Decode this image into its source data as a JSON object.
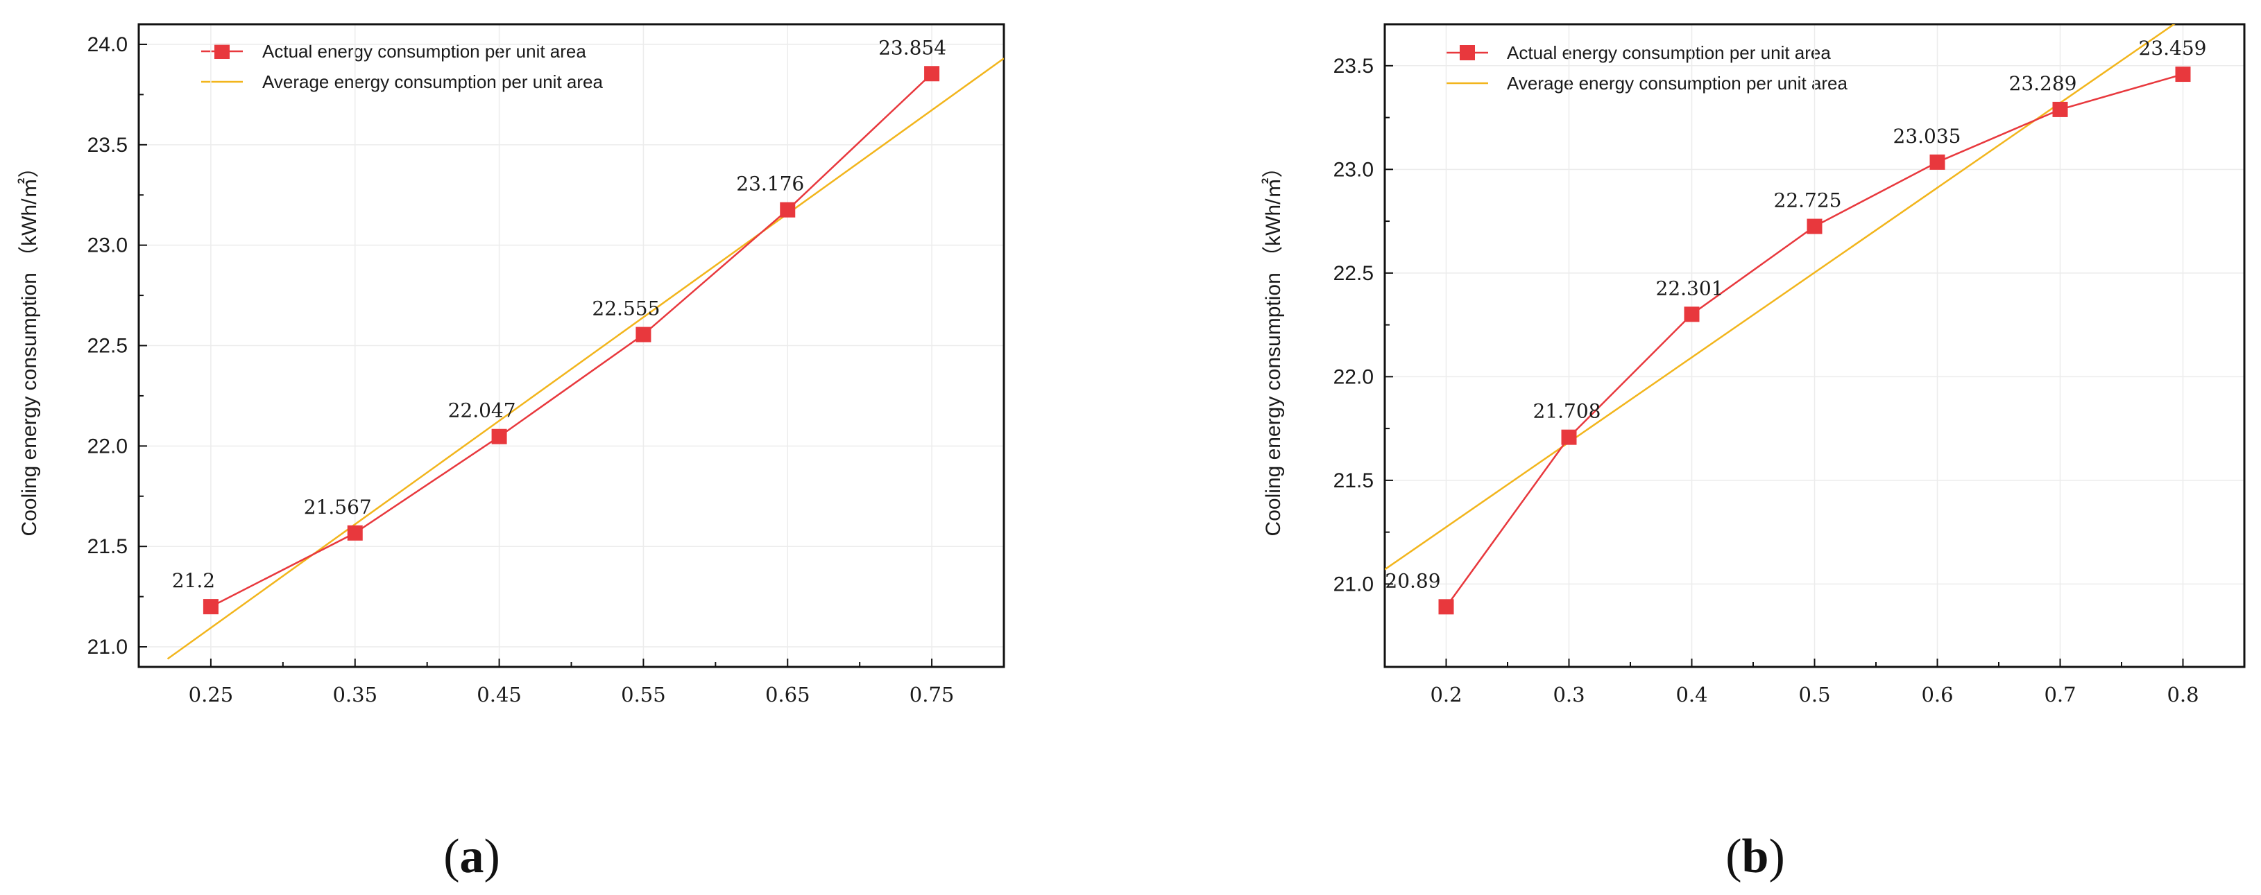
{
  "chart_data": [
    {
      "type": "line",
      "caption_letter": "a",
      "ylabel": "Cooling energy consumption （kWh/㎡）",
      "xlim": [
        0.2,
        0.8
      ],
      "ylim": [
        20.9,
        24.1
      ],
      "x_ticks": [
        "0.25",
        "0.35",
        "0.45",
        "0.55",
        "0.65",
        "0.75"
      ],
      "x_tick_values": [
        0.25,
        0.35,
        0.45,
        0.55,
        0.65,
        0.75
      ],
      "y_ticks": [
        "21.0",
        "21.5",
        "22.0",
        "22.5",
        "23.0",
        "23.5",
        "24.0"
      ],
      "y_tick_values": [
        21.0,
        21.5,
        22.0,
        22.5,
        23.0,
        23.5,
        24.0
      ],
      "series": [
        {
          "name": "Actual energy consumption per unit area",
          "color": "#e8383d",
          "marker": "square",
          "x": [
            0.25,
            0.35,
            0.45,
            0.55,
            0.65,
            0.75
          ],
          "y": [
            21.2,
            21.567,
            22.047,
            22.555,
            23.176,
            23.854
          ],
          "labels": [
            "21.2",
            "21.567",
            "22.047",
            "22.555",
            "23.176",
            "23.854"
          ]
        },
        {
          "name": "Average energy consumption per unit area",
          "color": "#f2b51c",
          "type": "fit-line",
          "x": [
            0.22,
            0.8
          ],
          "y": [
            20.94,
            23.93
          ]
        }
      ]
    },
    {
      "type": "line",
      "caption_letter": "b",
      "ylabel": "Cooling energy consumption （kWh/㎡）",
      "xlim": [
        0.15,
        0.85
      ],
      "ylim": [
        20.6,
        23.7
      ],
      "x_ticks": [
        "0.2",
        "0.3",
        "0.4",
        "0.5",
        "0.6",
        "0.7",
        "0.8"
      ],
      "x_tick_values": [
        0.2,
        0.3,
        0.4,
        0.5,
        0.6,
        0.7,
        0.8
      ],
      "y_ticks": [
        "21.0",
        "21.5",
        "22.0",
        "22.5",
        "23.0",
        "23.5"
      ],
      "y_tick_values": [
        21.0,
        21.5,
        22.0,
        22.5,
        23.0,
        23.5
      ],
      "series": [
        {
          "name": "Actual energy consumption per unit area",
          "color": "#e8383d",
          "marker": "square",
          "x": [
            0.2,
            0.3,
            0.4,
            0.5,
            0.6,
            0.7,
            0.8
          ],
          "y": [
            20.89,
            21.708,
            22.301,
            22.725,
            23.035,
            23.289,
            23.459
          ],
          "labels": [
            "20.89",
            "21.708",
            "22.301",
            "22.725",
            "23.035",
            "23.289",
            "23.459"
          ]
        },
        {
          "name": "Average energy consumption per unit area",
          "color": "#f2b51c",
          "type": "fit-line",
          "x": [
            0.15,
            0.8
          ],
          "y": [
            21.07,
            23.73
          ]
        }
      ]
    }
  ]
}
